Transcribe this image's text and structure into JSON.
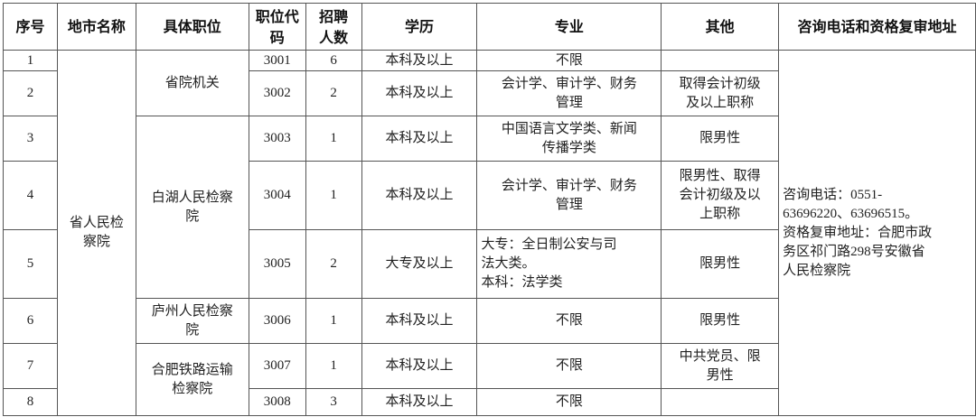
{
  "headers": [
    "序号",
    "地市名称",
    "具体职位",
    "职位代\n码",
    "招聘\n人数",
    "学历",
    "专业",
    "其他",
    "咨询电话和资格复审地址"
  ],
  "city": "省人民检\n察院",
  "positions": [
    {
      "name": "省院机关",
      "rows": 2
    },
    {
      "name": "白湖人民检察\n院",
      "rows": 3
    },
    {
      "name": "庐州人民检察\n院",
      "rows": 1
    },
    {
      "name": "合肥铁路运输\n检察院",
      "rows": 2
    }
  ],
  "contact": "咨询电话：0551-\n63696220、63696515。\n资格复审地址：合肥市政\n务区祁门路298号安徽省\n人民检察院",
  "rows": [
    {
      "no": "1",
      "code": "3001",
      "count": "6",
      "edu": "本科及以上",
      "major": "不限",
      "other": ""
    },
    {
      "no": "2",
      "code": "3002",
      "count": "2",
      "edu": "本科及以上",
      "major": "会计学、审计学、财务\n管理",
      "other": "取得会计初级\n及以上职称"
    },
    {
      "no": "3",
      "code": "3003",
      "count": "1",
      "edu": "本科及以上",
      "major": "中国语言文学类、新闻\n传播学类",
      "other": "限男性"
    },
    {
      "no": "4",
      "code": "3004",
      "count": "1",
      "edu": "本科及以上",
      "major": "会计学、审计学、财务\n管理",
      "other": "限男性、取得\n会计初级及以\n上职称"
    },
    {
      "no": "5",
      "code": "3005",
      "count": "2",
      "edu": "大专及以上",
      "major": "大专：全日制公安与司\n法大类。\n本科：法学类",
      "other": "限男性"
    },
    {
      "no": "6",
      "code": "3006",
      "count": "1",
      "edu": "本科及以上",
      "major": "不限",
      "other": "限男性"
    },
    {
      "no": "7",
      "code": "3007",
      "count": "1",
      "edu": "本科及以上",
      "major": "不限",
      "other": "中共党员、限\n男性"
    },
    {
      "no": "8",
      "code": "3008",
      "count": "3",
      "edu": "本科及以上",
      "major": "不限",
      "other": ""
    }
  ]
}
